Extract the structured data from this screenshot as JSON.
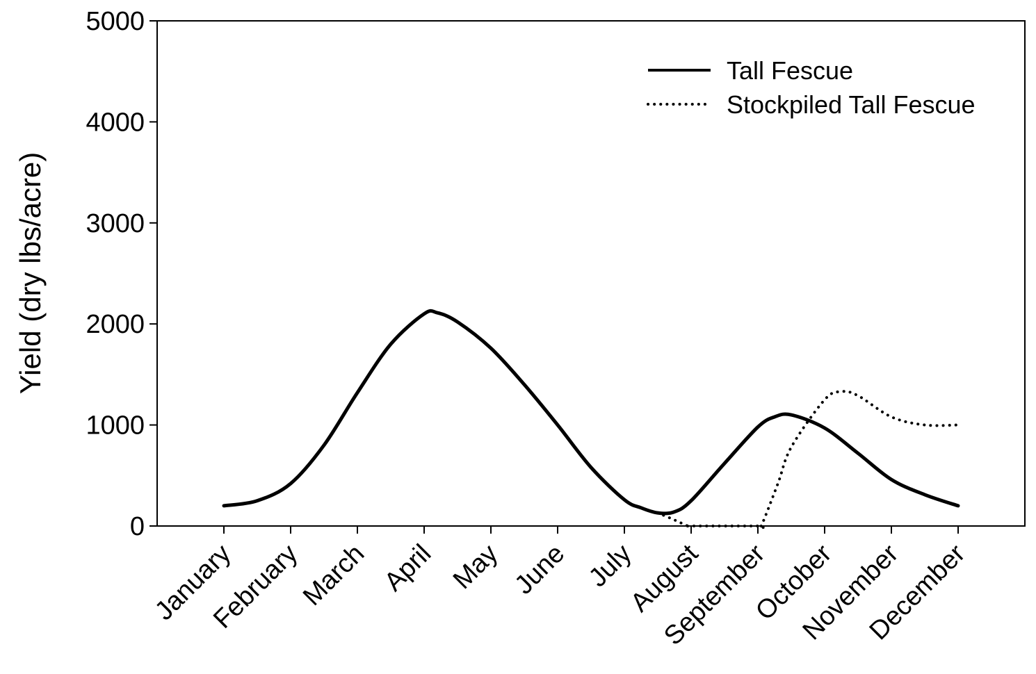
{
  "chart_data": {
    "type": "line",
    "title": "",
    "xlabel": "",
    "ylabel": "Yield (dry lbs/acre)",
    "categories": [
      "January",
      "February",
      "March",
      "April",
      "May",
      "June",
      "July",
      "August",
      "September",
      "October",
      "November",
      "December"
    ],
    "ylim": [
      0,
      5000
    ],
    "yticks": [
      0,
      1000,
      2000,
      3000,
      4000,
      5000
    ],
    "grid": false,
    "legend_position": "top-right",
    "series": [
      {
        "name": "Tall Fescue",
        "style": "solid",
        "color": "#000000",
        "x": [
          1,
          1.5,
          2,
          2.5,
          3,
          3.5,
          4,
          4.2,
          4.5,
          5,
          5.5,
          6,
          6.5,
          7,
          7.25,
          7.5,
          7.75,
          8,
          8.5,
          9,
          9.25,
          9.5,
          10,
          10.5,
          11,
          11.5,
          12
        ],
        "y": [
          200,
          250,
          420,
          800,
          1320,
          1800,
          2100,
          2110,
          2020,
          1760,
          1400,
          1000,
          580,
          260,
          180,
          130,
          140,
          250,
          620,
          980,
          1080,
          1100,
          970,
          720,
          460,
          310,
          200
        ]
      },
      {
        "name": "Stockpiled Tall Fescue",
        "style": "dotted",
        "color": "#000000",
        "x": [
          7.5,
          7.75,
          7.95,
          8,
          9,
          9.05,
          9.3,
          9.5,
          10,
          10.25,
          10.5,
          11,
          11.5,
          12
        ],
        "y": [
          130,
          60,
          0,
          0,
          0,
          0,
          420,
          780,
          1250,
          1330,
          1290,
          1080,
          1000,
          1000
        ]
      }
    ]
  }
}
